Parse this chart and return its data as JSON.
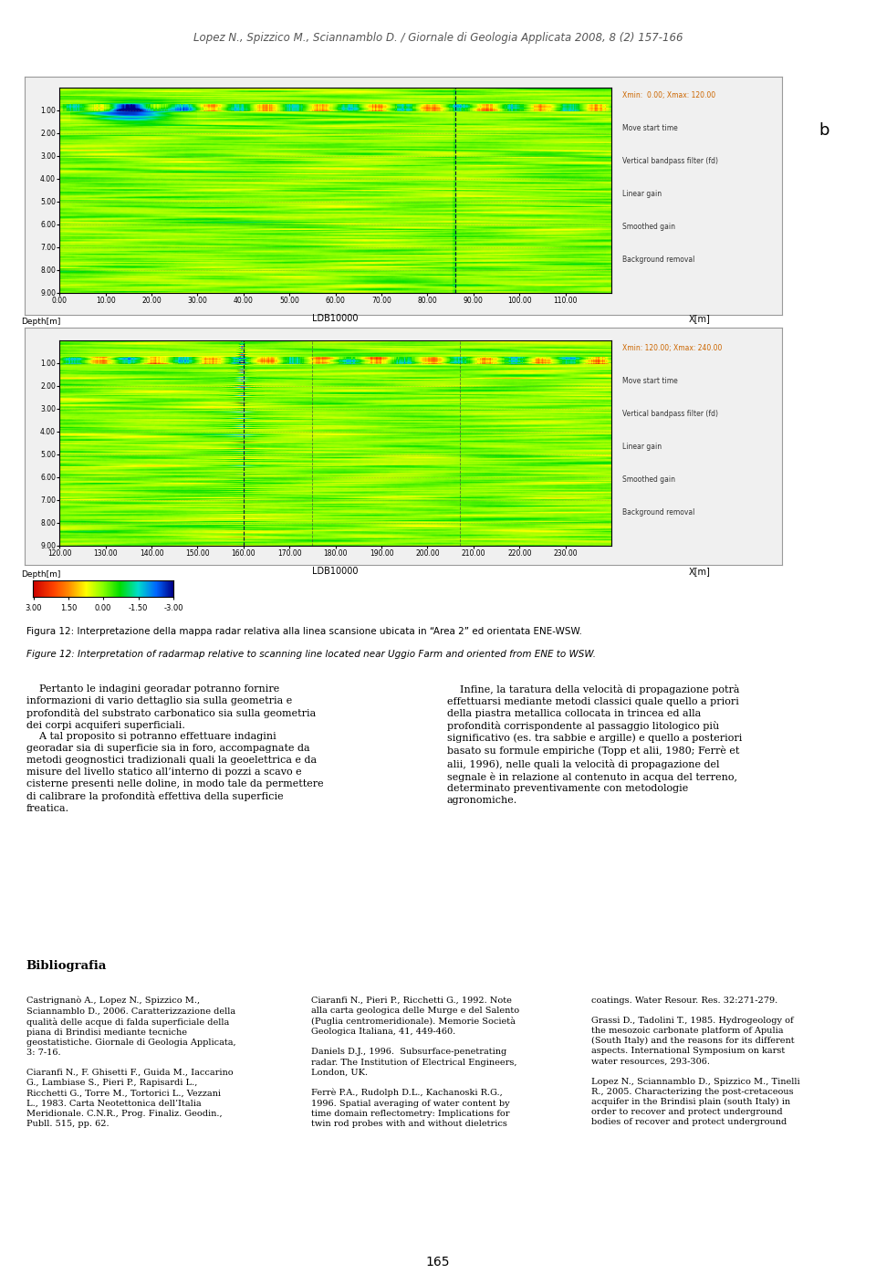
{
  "header": "Lopez N., Spizzico M., Sciannamblo D. / Giornale di Geologia Applicata 2008, 8 (2) 157-166",
  "fig_caption_it": "Figura 12: Interpretazione della mappa radar relativa alla linea scansione ubicata in “Area 2” ed orientata ENE-WSW.",
  "fig_caption_en": "Figure 12: Interpretation of radarmap relative to scanning line located near Uggio Farm and oriented from ENE to WSW.",
  "panel_b_label": "b",
  "panel1_legend": [
    "Xmin:  0.00; Xmax: 120.00",
    "Move start time",
    "Vertical bandpass filter (fd)",
    "Linear gain",
    "Smoothed gain",
    "Background removal"
  ],
  "panel2_legend": [
    "Xmin: 120.00; Xmax: 240.00",
    "Move start time",
    "Vertical bandpass filter (fd)",
    "Linear gain",
    "Smoothed gain",
    "Background removal"
  ],
  "panel1_xticks": [
    0.0,
    10.0,
    20.0,
    30.0,
    40.0,
    50.0,
    60.0,
    70.0,
    80.0,
    90.0,
    100.0,
    110.0
  ],
  "panel2_xticks": [
    120.0,
    130.0,
    140.0,
    150.0,
    160.0,
    170.0,
    180.0,
    190.0,
    200.0,
    210.0,
    220.0,
    230.0
  ],
  "yticks": [
    1.0,
    2.0,
    3.0,
    4.0,
    5.0,
    6.0,
    7.0,
    8.0,
    9.0
  ],
  "colorbar_ticks": [
    "3.00",
    "1.50",
    "0.00",
    "-1.50",
    "-3.00"
  ],
  "xlabel": "LDB10000",
  "xright_label": "X[m]",
  "ylabel": "Depth[m]",
  "body_left": "    Pertanto le indagini georadar potranno fornire\ninformazioni di vario dettaglio sia sulla geometria e\nprofondità del substrato carbonatico sia sulla geometria\ndei corpi acquiferi superficiali.\n    A tal proposito si potranno effettuare indagini\ngeoradar sia di superficie sia in foro, accompagnate da\nmetodi geognostici tradizionali quali la geoelettrica e da\nmisure del livello statico all’interno di pozzi a scavo e\ncisterne presenti nelle doline, in modo tale da permettere\ndi calibrare la profondità effettiva della superficie\nfreatica.",
  "body_right": "    Infine, la taratura della velocità di propagazione potrà\neffettuarsi mediante metodi classici quale quello a priori\ndella piastra metallica collocata in trincea ed alla\nprofondità corrispondente al passaggio litologico più\nsignificativo (es. tra sabbie e argille) e quello a posteriori\nbasato su formule empiriche (Topp et alii, 1980; Ferrè et\nalii, 1996), nelle quali la velocità di propagazione del\nsegnale è in relazione al contenuto in acqua del terreno,\ndeterminato preventivamente con metodologie\nagronomiche.",
  "bibliography_title": "Bibliografia",
  "bib_col1": "Castrignanò A., Lopez N., Spizzico M.,\nSciannamblo D., 2006. Caratterizzazione della\nqualità delle acque di falda superficiale della\npiana di Brindisi mediante tecniche\ngeostatistiche. Giornale di Geologia Applicata,\n3: 7-16.\n\nCiaranfi N., F. Ghisetti F., Guida M., Iaccarino\nG., Lambiase S., Pieri P., Rapisardi L.,\nRicchetti G., Torre M., Tortorici L., Vezzani\nL., 1983. Carta Neotettonica dell’Italia\nMeridionale. C.N.R., Prog. Finaliz. Geodin.,\nPubll. 515, pp. 62.",
  "bib_col2": "Ciaranfi N., Pieri P., Ricchetti G., 1992. Note\nalla carta geologica delle Murge e del Salento\n(Puglia centromeridionale). Memorie Società\nGeologica Italiana, 41, 449-460.\n\nDaniels D.J., 1996.  Subsurface-penetrating\nradar. The Institution of Electrical Engineers,\nLondon, UK.\n\nFerrè P.A., Rudolph D.L., Kachanoski R.G.,\n1996. Spatial averaging of water content by\ntime domain reflectometry: Implications for\ntwin rod probes with and without dieletrics",
  "bib_col3": "coatings. Water Resour. Res. 32:271-279.\n\nGrassi D., Tadolini T., 1985. Hydrogeology of\nthe mesozoic carbonate platform of Apulia\n(South Italy) and the reasons for its different\naspects. International Symposium on karst\nwater resources, 293-306.\n\nLopez N., Sciannamblo D., Spizzico M., Tinelli\nR., 2005. Characterizing the post-cretaceous\nacquifer in the Brindisi plain (south Italy) in\norder to recover and protect underground\nbodies of recover and protect underground",
  "page_number": "165"
}
